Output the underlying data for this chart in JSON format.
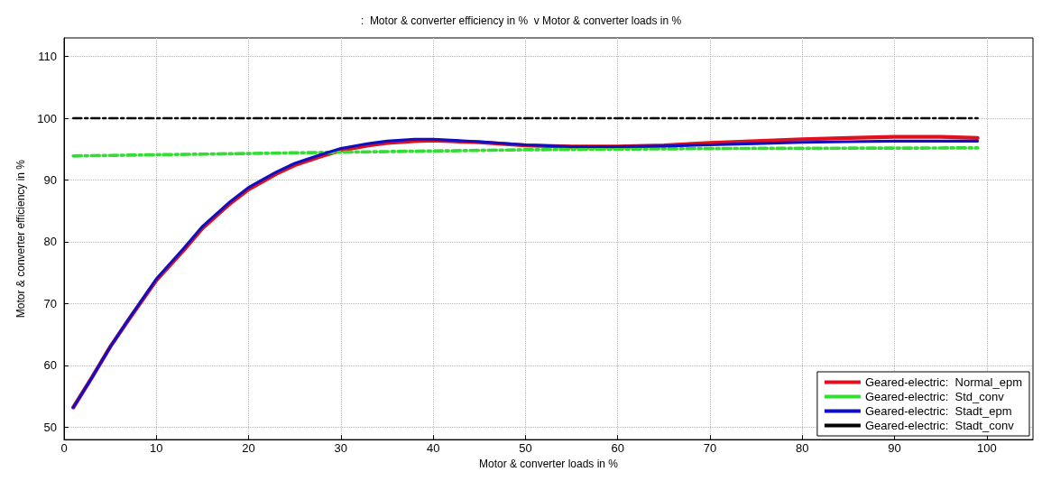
{
  "chart_data": {
    "type": "line",
    "title": ":  Motor & converter efficiency in %  v Motor & converter loads in %",
    "xlabel": "Motor & converter loads in %",
    "ylabel": "Motor & converter efficiency in %",
    "xlim": [
      0,
      105
    ],
    "xticks": [
      0,
      10,
      20,
      30,
      40,
      50,
      60,
      70,
      80,
      90,
      100
    ],
    "ylim": [
      48,
      113
    ],
    "yticks": [
      50,
      60,
      70,
      80,
      90,
      100,
      110
    ],
    "grid": true,
    "legend": "bottom right",
    "marker": "none",
    "series": [
      {
        "name": "Geared-electric:  Normal_epm",
        "color": "#e01020",
        "line_style": "solid",
        "x": [
          1,
          3,
          5,
          7,
          10,
          13,
          15,
          18,
          20,
          23,
          25,
          28,
          30,
          33,
          35,
          38,
          40,
          45,
          50,
          55,
          60,
          65,
          70,
          75,
          80,
          85,
          90,
          95,
          99
        ],
        "values": [
          53.2,
          58,
          63,
          67.4,
          73.8,
          78.7,
          82.2,
          86.2,
          88.5,
          91.0,
          92.4,
          93.9,
          94.8,
          95.6,
          96.0,
          96.3,
          96.4,
          96.1,
          95.6,
          95.4,
          95.4,
          95.6,
          96.0,
          96.3,
          96.6,
          96.8,
          97.0,
          97.0,
          96.8
        ]
      },
      {
        "name": "Geared-electric:  Std_conv",
        "color": "#33dd33",
        "line_style": "dashed",
        "x": [
          1,
          30,
          50,
          70,
          99
        ],
        "values": [
          93.9,
          94.5,
          94.9,
          95.1,
          95.2
        ]
      },
      {
        "name": "Geared-electric:  Stadt_epm",
        "color": "#1010c0",
        "line_style": "solid",
        "x": [
          1,
          3,
          5,
          7,
          10,
          13,
          15,
          18,
          20,
          23,
          25,
          28,
          30,
          33,
          35,
          38,
          40,
          45,
          50,
          55,
          60,
          65,
          70,
          75,
          80,
          85,
          90,
          95,
          99
        ],
        "values": [
          53.2,
          58,
          63,
          67.5,
          74,
          79,
          82.5,
          86.5,
          88.8,
          91.3,
          92.7,
          94.2,
          95.1,
          95.9,
          96.3,
          96.6,
          96.6,
          96.2,
          95.7,
          95.4,
          95.4,
          95.5,
          95.7,
          95.9,
          96.1,
          96.2,
          96.3,
          96.3,
          96.3
        ]
      },
      {
        "name": "Geared-electric:  Stadt_conv",
        "color": "#000000",
        "line_style": "dashed",
        "x": [
          1,
          99
        ],
        "values": [
          100,
          100
        ]
      }
    ]
  }
}
